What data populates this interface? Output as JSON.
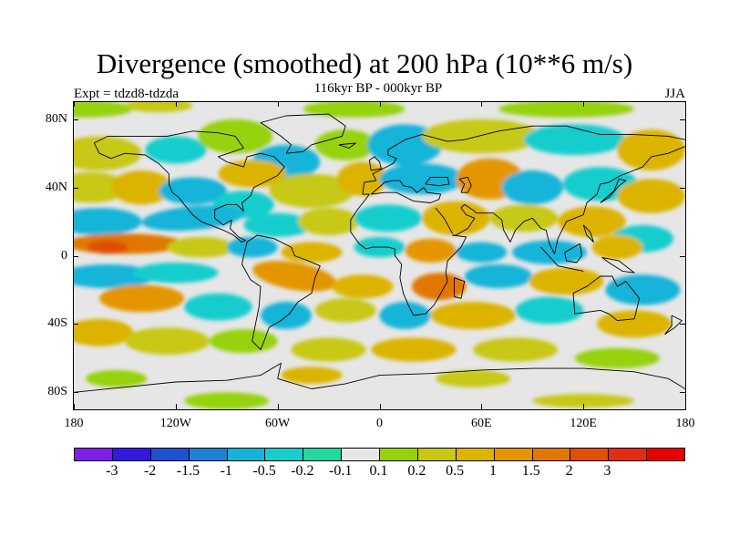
{
  "header": {
    "title": "Divergence (smoothed) at 200 hPa (10**6 m/s)",
    "subtitle": "116kyr BP - 000kyr BP",
    "experiment": "Expt = tdzd8-tdzda",
    "season": "JJA"
  },
  "axes": {
    "lat_labels": [
      "80N",
      "40N",
      "0",
      "40S",
      "80S"
    ],
    "lat_values": [
      80,
      40,
      0,
      -40,
      -80
    ],
    "lon_labels": [
      "180",
      "120W",
      "60W",
      "0",
      "60E",
      "120E",
      "180"
    ],
    "lon_values": [
      -180,
      -120,
      -60,
      0,
      60,
      120,
      180
    ]
  },
  "colorbar": {
    "colors": [
      "#7f1ee6",
      "#3219dc",
      "#1f50d2",
      "#1c82d6",
      "#14b4d9",
      "#17cdcd",
      "#22d8a0",
      "#e6e6e6",
      "#96d20a",
      "#c8c814",
      "#dcb400",
      "#e49600",
      "#e07800",
      "#e05000",
      "#e02e14",
      "#e60000"
    ],
    "labels": [
      "-3",
      "-2",
      "-1.5",
      "-1",
      "-0.5",
      "-0.2",
      "-0.1",
      "0.1",
      "0.2",
      "0.5",
      "1",
      "1.5",
      "2",
      "3"
    ]
  },
  "chart_data": {
    "type": "heatmap",
    "title": "Divergence (smoothed) at 200 hPa (10**6 m/s)",
    "subtitle": "116kyr BP - 000kyr BP",
    "projection": "cylindrical equidistant",
    "xlim": [
      -180,
      180
    ],
    "ylim": [
      -90,
      90
    ],
    "contour_levels": [
      -3,
      -2,
      -1.5,
      -1,
      -0.5,
      -0.2,
      -0.1,
      0.1,
      0.2,
      0.5,
      1,
      1.5,
      2,
      3
    ],
    "features": [
      {
        "name": "positive band",
        "lon": -150,
        "lat": 8,
        "value": 2
      },
      {
        "name": "positive band",
        "lon": -135,
        "lat": 3,
        "value": 1.5
      },
      {
        "name": "negative band",
        "lon": -110,
        "lat": 20,
        "value": -0.5
      },
      {
        "name": "negative band",
        "lon": -150,
        "lat": -10,
        "value": -0.5
      },
      {
        "name": "positive band",
        "lon": -130,
        "lat": -25,
        "value": 1
      },
      {
        "name": "positive band",
        "lon": -45,
        "lat": -10,
        "value": 1
      },
      {
        "name": "positive band",
        "lon": 40,
        "lat": -20,
        "value": 1.5
      },
      {
        "name": "positive band",
        "lon": 65,
        "lat": 45,
        "value": 1
      },
      {
        "name": "negative band",
        "lon": 100,
        "lat": 0,
        "value": -1
      },
      {
        "name": "negative band",
        "lon": 150,
        "lat": -20,
        "value": -0.5
      },
      {
        "name": "positive band",
        "lon": 140,
        "lat": 25,
        "value": 1
      },
      {
        "name": "negative band",
        "lon": 15,
        "lat": 60,
        "value": -0.5
      }
    ]
  }
}
